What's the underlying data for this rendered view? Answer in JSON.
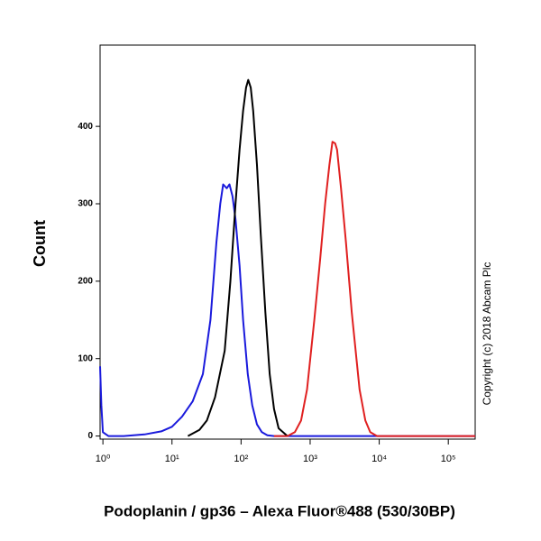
{
  "chart_data": {
    "type": "line",
    "y_label": "Count",
    "x_label": "Podoplanin / gp36 – Alexa Fluor®488 (530/30BP)",
    "annotation": "Copyright (c) 2018 Abcam Plc",
    "xscale": "log",
    "xlim": [
      0.91,
      245000
    ],
    "ylim": [
      -4,
      505
    ],
    "xticks": [
      {
        "value": 1,
        "label": "10⁰"
      },
      {
        "value": 10,
        "label": "10¹"
      },
      {
        "value": 100,
        "label": "10²"
      },
      {
        "value": 1000,
        "label": "10³"
      },
      {
        "value": 10000,
        "label": "10⁴"
      },
      {
        "value": 100000,
        "label": "10⁵"
      }
    ],
    "yticks": [
      0,
      100,
      200,
      300,
      400
    ],
    "series": [
      {
        "color": "#1a1adc",
        "x": [
          0.91,
          0.95,
          1.0,
          1.2,
          2,
          4,
          7,
          10,
          14,
          20,
          28,
          36,
          44,
          50,
          55,
          62,
          68,
          75,
          83,
          95,
          107,
          125,
          145,
          170,
          200,
          240,
          300,
          1000,
          245000
        ],
        "values": [
          90,
          40,
          5,
          0,
          0,
          2,
          6,
          12,
          25,
          45,
          80,
          150,
          250,
          300,
          325,
          320,
          325,
          310,
          280,
          220,
          150,
          80,
          40,
          15,
          5,
          1,
          0,
          0,
          0
        ]
      },
      {
        "color": "#000000",
        "x": [
          17,
          25,
          32,
          42,
          58,
          70,
          83,
          95,
          107,
          118,
          127,
          138,
          150,
          170,
          193,
          225,
          260,
          300,
          350,
          470
        ],
        "values": [
          0,
          8,
          20,
          50,
          110,
          200,
          300,
          370,
          420,
          450,
          460,
          450,
          420,
          350,
          260,
          160,
          80,
          35,
          10,
          0
        ]
      },
      {
        "color": "#e02020",
        "x": [
          300,
          470,
          600,
          740,
          900,
          1150,
          1400,
          1650,
          1900,
          2100,
          2300,
          2450,
          2800,
          3300,
          4000,
          5200,
          6300,
          7400,
          9300,
          245000
        ],
        "values": [
          0,
          0,
          5,
          20,
          60,
          150,
          230,
          300,
          350,
          380,
          378,
          370,
          320,
          250,
          160,
          60,
          20,
          5,
          0,
          0
        ]
      }
    ]
  }
}
